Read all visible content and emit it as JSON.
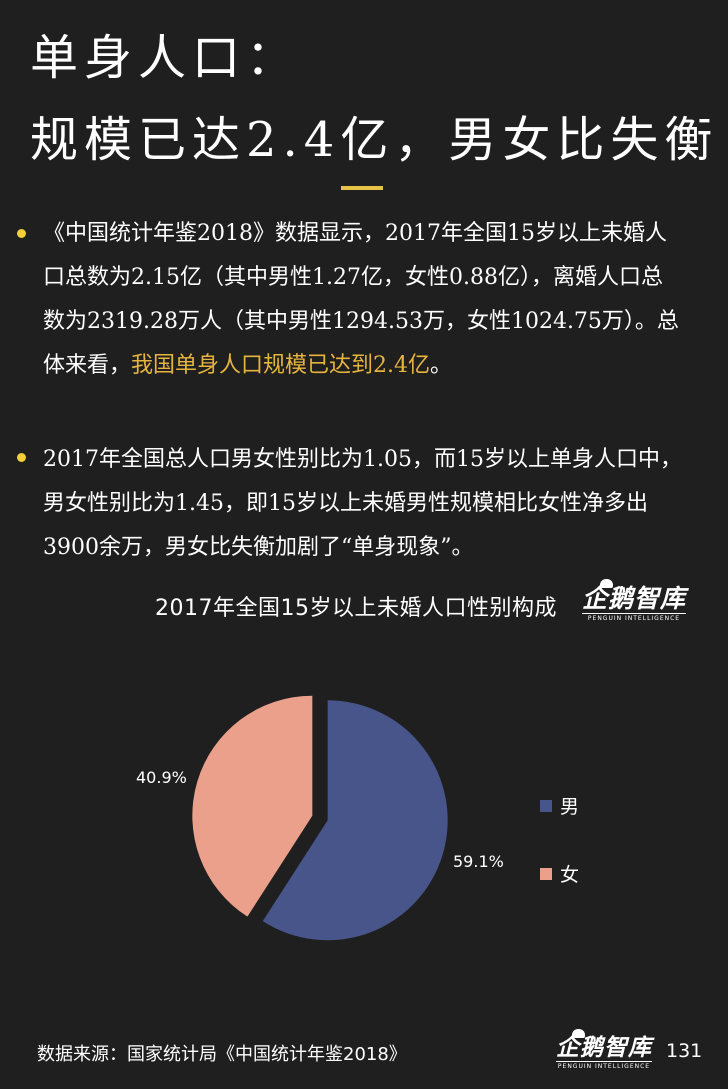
{
  "header": {
    "title_line1": "单身人口：",
    "title_line2": "规模已达2.4亿，男女比失衡"
  },
  "paragraphs": [
    {
      "normal": "《中国统计年鉴2018》数据显示，2017年全国15岁以上未婚人口总数为2.15亿（其中男性1.27亿，女性0.88亿），离婚人口总数为2319.28万人（其中男性1294.53万，女性1024.75万）。总体来看，",
      "highlight": "我国单身人口规模已达到2.4亿",
      "tail": "。"
    },
    {
      "normal": "2017年全国总人口男女性别比为1.05，而15岁以上单身人口中，男女性别比为1.45，即15岁以上未婚男性规模相比女性净多出3900余万，男女比失衡加剧了“单身现象”。"
    }
  ],
  "colors": {
    "background": "#201f1f",
    "accent_yellow": "#f2cf3a",
    "highlight_text": "#e6b53d",
    "male": "#47558a",
    "female": "#eba08b"
  },
  "logo": {
    "text": "企鹅智库",
    "subtext": "PENGUIN INTELLIGENCE",
    "icon": "penguin-icon"
  },
  "chart_data": {
    "type": "pie",
    "title": "2017年全国15岁以上未婚人口性别构成",
    "series": [
      {
        "name": "男",
        "value": 59.1,
        "label": "59.1%",
        "color": "#47558a"
      },
      {
        "name": "女",
        "value": 40.9,
        "label": "40.9%",
        "color": "#eba08b"
      }
    ],
    "legend_position": "right"
  },
  "footer": {
    "source": "数据来源：国家统计局《中国统计年鉴2018》",
    "page_number": "131"
  }
}
